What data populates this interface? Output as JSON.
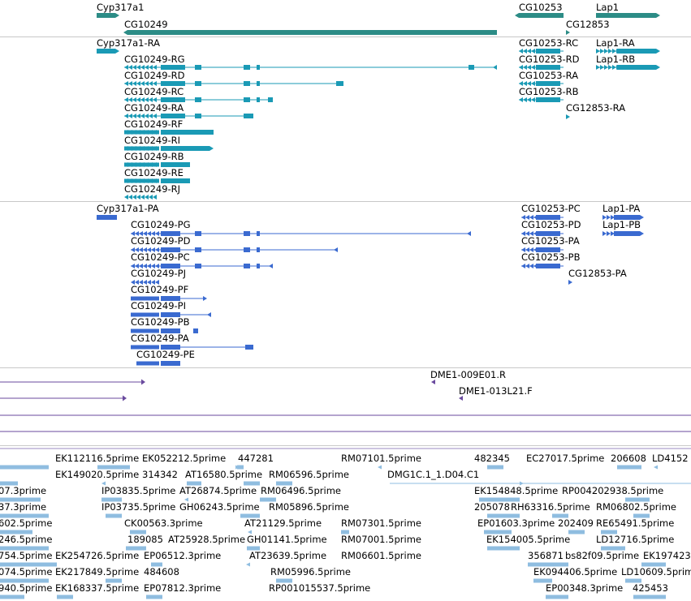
{
  "colors": {
    "gene": "#2c8c86",
    "transcript_flybase": "#1a9ab5",
    "protein": "#3a6ad0",
    "clone": "#6a4a9e",
    "est": "#8fbde0",
    "separator": "#c8c8c8"
  },
  "genes": [
    {
      "id": "Cyp317a1"
    },
    {
      "id": "CG10249"
    },
    {
      "id": "CG10253"
    },
    {
      "id": "Lap1"
    },
    {
      "id": "CG12853"
    }
  ],
  "transcripts": [
    {
      "id": "Cyp317a1-RA"
    },
    {
      "id": "CG10249-RG"
    },
    {
      "id": "CG10249-RD"
    },
    {
      "id": "CG10249-RC"
    },
    {
      "id": "CG10249-RA"
    },
    {
      "id": "CG10249-RF"
    },
    {
      "id": "CG10249-RI"
    },
    {
      "id": "CG10249-RB"
    },
    {
      "id": "CG10249-RE"
    },
    {
      "id": "CG10249-RJ"
    },
    {
      "id": "CG10253-RC"
    },
    {
      "id": "CG10253-RD"
    },
    {
      "id": "CG10253-RA"
    },
    {
      "id": "CG10253-RB"
    },
    {
      "id": "CG12853-RA"
    },
    {
      "id": "Lap1-RA"
    },
    {
      "id": "Lap1-RB"
    }
  ],
  "proteins": [
    {
      "id": "Cyp317a1-PA"
    },
    {
      "id": "CG10249-PG"
    },
    {
      "id": "CG10249-PD"
    },
    {
      "id": "CG10249-PC"
    },
    {
      "id": "CG10249-PJ"
    },
    {
      "id": "CG10249-PF"
    },
    {
      "id": "CG10249-PI"
    },
    {
      "id": "CG10249-PB"
    },
    {
      "id": "CG10249-PA"
    },
    {
      "id": "CG10249-PE"
    },
    {
      "id": "CG10253-PC"
    },
    {
      "id": "CG10253-PD"
    },
    {
      "id": "CG10253-PA"
    },
    {
      "id": "CG10253-PB"
    },
    {
      "id": "CG12853-PA"
    },
    {
      "id": "Lap1-PA"
    },
    {
      "id": "Lap1-PB"
    }
  ],
  "clones": [
    {
      "id": "DME1-009E01.R"
    },
    {
      "id": "DME1-013L21.F"
    }
  ],
  "ests": [
    "EK112116.5prime",
    "EK052212.5prime",
    "447281",
    "RM07101.5prime",
    "482345",
    "EC27017.5prime",
    "206608",
    "LD4152",
    "EK149020.5prime",
    "314342",
    "AT16580.5prime",
    "RM06596.5prime",
    "DMG1C.1_1.D04.C1",
    "07.3prime",
    "IP03835.5prime",
    "AT26874.5prime",
    "RM06496.5prime",
    "EK154848.5prime",
    "RP004202938.5prime",
    "37.3prime",
    "IP03735.5prime",
    "GH06243.5prime",
    "RM05896.5prime",
    "205078",
    "RH63316.5prime",
    "RM06802.5prime",
    "602.5prime",
    "CK00563.3prime",
    "AT21129.5prime",
    "RM07301.5prime",
    "EP01603.3prime",
    "202409",
    "RE65491.5prime",
    "246.5prime",
    "189085",
    "AT25928.5prime",
    "GH01141.5prime",
    "RM07001.5prime",
    "EK154005.5prime",
    "LD12716.5prime",
    "754.5prime",
    "EK254726.5prime",
    "EP06512.3prime",
    "AT23639.5prime",
    "RM06601.5prime",
    "356871",
    "bs82f09.5prime",
    "EK197423",
    "074.5prime",
    "EK217849.5prime",
    "484608",
    "RM05996.5prime",
    "EK094406.5prime",
    "LD10609.5prime",
    "940.5prime",
    "EK168337.5prime",
    "EP07812.3prime",
    "RP001015537.5prime",
    "EP00348.3prime",
    "425453"
  ]
}
